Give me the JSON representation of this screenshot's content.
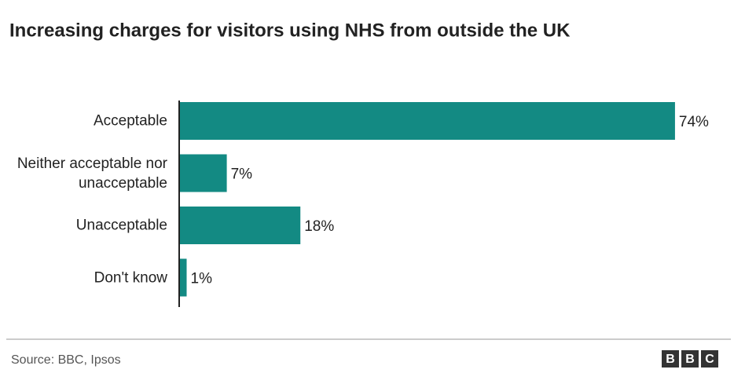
{
  "chart_data": {
    "type": "bar",
    "orientation": "horizontal",
    "title": "Increasing charges for visitors using NHS from outside the UK",
    "categories": [
      "Acceptable",
      "Neither acceptable nor unacceptable",
      "Unacceptable",
      "Don't know"
    ],
    "values": [
      74,
      7,
      18,
      1
    ],
    "value_labels": [
      "74%",
      "7%",
      "18%",
      "1%"
    ],
    "color": "#138a83",
    "xlim": [
      0,
      80
    ],
    "source": "Source: BBC, Ipsos",
    "logo": [
      "B",
      "B",
      "C"
    ]
  }
}
